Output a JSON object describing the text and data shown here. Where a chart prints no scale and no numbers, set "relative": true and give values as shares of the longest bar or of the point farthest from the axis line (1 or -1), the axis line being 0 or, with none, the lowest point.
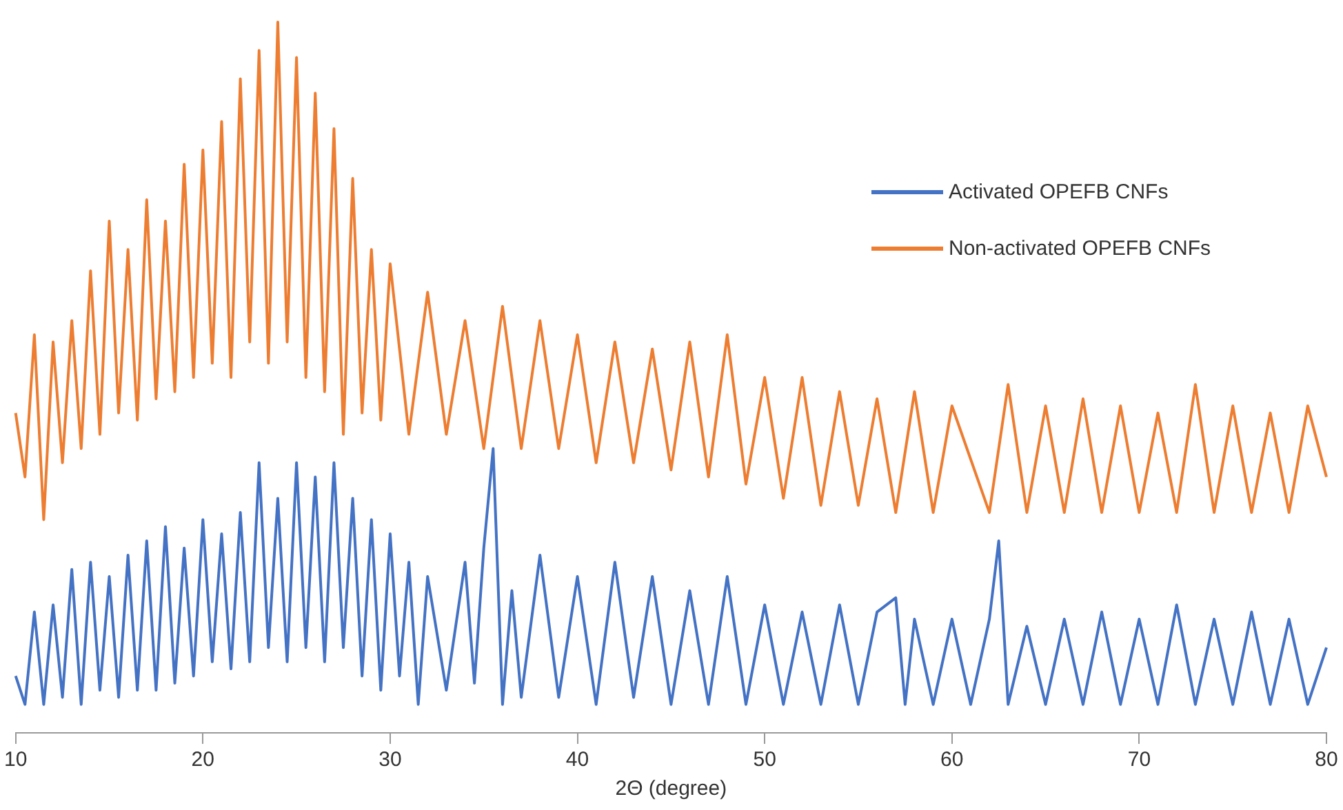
{
  "chart_data": {
    "type": "line",
    "relative": true,
    "xlabel": "2Θ (degree)",
    "xlim": [
      10,
      80
    ],
    "xticks": [
      10,
      20,
      30,
      40,
      50,
      60,
      70,
      80
    ],
    "legend": "top right",
    "grid": false,
    "series": [
      {
        "name": "Activated OPEFB CNFs",
        "color": "#4472c4",
        "x": [
          10,
          10.5,
          11,
          11.5,
          12,
          12.5,
          13,
          13.5,
          14,
          14.5,
          15,
          15.5,
          16,
          16.5,
          17,
          17.5,
          18,
          18.5,
          19,
          19.5,
          20,
          20.5,
          21,
          21.5,
          22,
          22.5,
          23,
          23.5,
          24,
          24.5,
          25,
          25.5,
          26,
          26.5,
          27,
          27.5,
          28,
          28.5,
          29,
          29.5,
          30,
          30.5,
          31,
          31.5,
          32,
          33,
          34,
          34.5,
          35,
          35.5,
          36,
          36.5,
          37,
          38,
          39,
          40,
          41,
          42,
          43,
          44,
          45,
          46,
          47,
          48,
          49,
          50,
          51,
          52,
          53,
          54,
          55,
          56,
          57,
          57.5,
          58,
          59,
          60,
          61,
          62,
          62.5,
          63,
          64,
          65,
          66,
          67,
          68,
          69,
          70,
          71,
          72,
          73,
          74,
          75,
          76,
          77,
          78,
          79,
          80
        ],
        "values": [
          0.08,
          0.04,
          0.17,
          0.04,
          0.18,
          0.05,
          0.23,
          0.04,
          0.24,
          0.06,
          0.22,
          0.05,
          0.25,
          0.06,
          0.27,
          0.06,
          0.29,
          0.07,
          0.26,
          0.08,
          0.3,
          0.1,
          0.28,
          0.09,
          0.31,
          0.1,
          0.38,
          0.12,
          0.33,
          0.1,
          0.38,
          0.12,
          0.36,
          0.1,
          0.38,
          0.12,
          0.33,
          0.08,
          0.3,
          0.06,
          0.28,
          0.08,
          0.24,
          0.04,
          0.22,
          0.06,
          0.24,
          0.07,
          0.26,
          0.4,
          0.04,
          0.2,
          0.05,
          0.25,
          0.05,
          0.22,
          0.04,
          0.24,
          0.05,
          0.22,
          0.04,
          0.2,
          0.04,
          0.22,
          0.04,
          0.18,
          0.04,
          0.17,
          0.04,
          0.18,
          0.04,
          0.17,
          0.19,
          0.04,
          0.16,
          0.04,
          0.16,
          0.04,
          0.16,
          0.27,
          0.04,
          0.15,
          0.04,
          0.16,
          0.04,
          0.17,
          0.04,
          0.16,
          0.04,
          0.18,
          0.04,
          0.16,
          0.04,
          0.17,
          0.04,
          0.16,
          0.04,
          0.12
        ]
      },
      {
        "name": "Non-activated OPEFB CNFs",
        "color": "#ed7d31",
        "x": [
          10,
          10.5,
          11,
          11.5,
          12,
          12.5,
          13,
          13.5,
          14,
          14.5,
          15,
          15.5,
          16,
          16.5,
          17,
          17.5,
          18,
          18.5,
          19,
          19.5,
          20,
          20.5,
          21,
          21.5,
          22,
          22.5,
          23,
          23.5,
          24,
          24.5,
          25,
          25.5,
          26,
          26.5,
          27,
          27.5,
          28,
          28.5,
          29,
          29.5,
          30,
          31,
          32,
          33,
          34,
          35,
          36,
          37,
          38,
          39,
          40,
          41,
          42,
          43,
          44,
          45,
          46,
          47,
          48,
          49,
          50,
          51,
          52,
          53,
          54,
          55,
          56,
          57,
          58,
          59,
          60,
          62,
          63,
          64,
          65,
          66,
          67,
          68,
          69,
          70,
          71,
          72,
          73,
          74,
          75,
          76,
          77,
          78,
          79,
          80
        ],
        "values": [
          0.45,
          0.36,
          0.56,
          0.3,
          0.55,
          0.38,
          0.58,
          0.4,
          0.65,
          0.42,
          0.72,
          0.45,
          0.68,
          0.44,
          0.75,
          0.47,
          0.72,
          0.48,
          0.8,
          0.5,
          0.82,
          0.52,
          0.86,
          0.5,
          0.92,
          0.55,
          0.96,
          0.52,
          1,
          0.55,
          0.95,
          0.5,
          0.9,
          0.48,
          0.85,
          0.42,
          0.78,
          0.45,
          0.68,
          0.44,
          0.66,
          0.42,
          0.62,
          0.42,
          0.58,
          0.4,
          0.6,
          0.4,
          0.58,
          0.4,
          0.56,
          0.38,
          0.55,
          0.38,
          0.54,
          0.37,
          0.55,
          0.36,
          0.56,
          0.35,
          0.5,
          0.33,
          0.5,
          0.32,
          0.48,
          0.32,
          0.47,
          0.31,
          0.48,
          0.31,
          0.46,
          0.31,
          0.49,
          0.31,
          0.46,
          0.31,
          0.47,
          0.31,
          0.46,
          0.31,
          0.45,
          0.31,
          0.49,
          0.31,
          0.46,
          0.31,
          0.45,
          0.31,
          0.46,
          0.36
        ]
      }
    ]
  }
}
